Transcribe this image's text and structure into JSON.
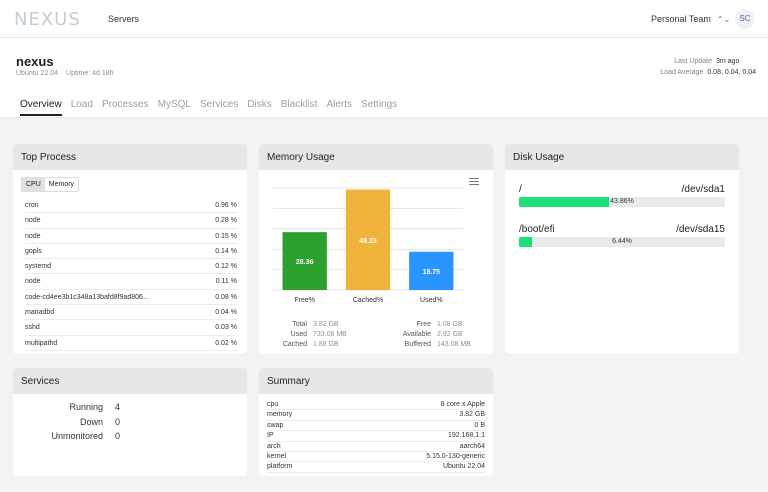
{
  "app": {
    "logo": "NEXUS",
    "nav_servers": "Servers",
    "team": "Personal Team",
    "team_chevron": "⌃⌄",
    "avatar": "SC"
  },
  "server": {
    "name": "nexus",
    "os": "Ubuntu 22.04",
    "uptime": "Uptime: 4d 18h",
    "last_update_label": "Last Update",
    "last_update_value": "3m ago",
    "load_label": "Load Average",
    "load_value": "0.08, 0.04, 0.04"
  },
  "tabs": [
    "Overview",
    "Load",
    "Processes",
    "MySQL",
    "Services",
    "Disks",
    "Blacklist",
    "Alerts",
    "Settings"
  ],
  "top_process": {
    "title": "Top Process",
    "toggle": [
      "CPU",
      "Memory"
    ],
    "rows": [
      {
        "name": "cron",
        "value": "0.96 %"
      },
      {
        "name": "node",
        "value": "0.28 %"
      },
      {
        "name": "node",
        "value": "0.15 %"
      },
      {
        "name": "gopls",
        "value": "0.14 %"
      },
      {
        "name": "systemd",
        "value": "0.12 %"
      },
      {
        "name": "node",
        "value": "0.11 %"
      },
      {
        "name": "code-cd4ee3b1c348a13bafd8f9ad806...",
        "value": "0.08 %"
      },
      {
        "name": "mariadbd",
        "value": "0.04 %"
      },
      {
        "name": "sshd",
        "value": "0.03 %"
      },
      {
        "name": "multipathd",
        "value": "0.02 %"
      }
    ]
  },
  "memory": {
    "title": "Memory Usage",
    "stats_left": [
      {
        "k": "Total",
        "v": "3.82 GB"
      },
      {
        "k": "Used",
        "v": "733.06 MB"
      },
      {
        "k": "Cached",
        "v": "1.88 GB"
      }
    ],
    "stats_right": [
      {
        "k": "Free",
        "v": "1.08 GB"
      },
      {
        "k": "Available",
        "v": "2.92 GB"
      },
      {
        "k": "Buffered",
        "v": "143.08 MB"
      }
    ]
  },
  "chart_data": {
    "type": "bar",
    "categories": [
      "Free%",
      "Cached%",
      "Used%"
    ],
    "values": [
      28.36,
      49.23,
      18.75
    ],
    "data_labels": [
      "28.36",
      "49.23",
      "18.75"
    ],
    "colors": [
      "#2ca02c",
      "#f0b43c",
      "#2b95ff"
    ],
    "ylim": [
      0,
      50
    ],
    "grid": true,
    "title": "",
    "xlabel": "",
    "ylabel": ""
  },
  "disk": {
    "title": "Disk Usage",
    "items": [
      {
        "mount": "/",
        "device": "/dev/sda1",
        "percent": 43.86,
        "label": "43.86%"
      },
      {
        "mount": "/boot/efi",
        "device": "/dev/sda15",
        "percent": 6.44,
        "label": "6.44%"
      }
    ]
  },
  "services": {
    "title": "Services",
    "rows": [
      {
        "k": "Running",
        "v": "4"
      },
      {
        "k": "Down",
        "v": "0"
      },
      {
        "k": "Unmonitored",
        "v": "0"
      }
    ]
  },
  "summary": {
    "title": "Summary",
    "rows": [
      {
        "k": "cpu",
        "v": "8 core x Apple"
      },
      {
        "k": "memory",
        "v": "3.82 GB"
      },
      {
        "k": "swap",
        "v": "0 B"
      },
      {
        "k": "IP",
        "v": "192.168.1.1"
      },
      {
        "k": "arch",
        "v": "aarch64"
      },
      {
        "k": "kernel",
        "v": "5.15.0-130-generic"
      },
      {
        "k": "platform",
        "v": "Ubuntu 22.04"
      }
    ]
  }
}
